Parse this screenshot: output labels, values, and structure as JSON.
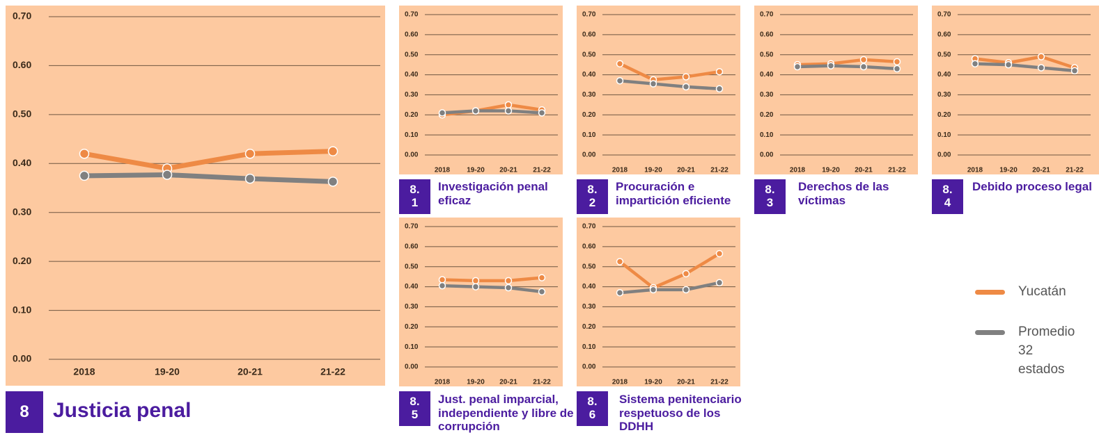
{
  "chart_data": [
    {
      "type": "line",
      "title": "Justicia penal",
      "badge": [
        "8"
      ],
      "categories": [
        "2018",
        "19-20",
        "20-21",
        "21-22"
      ],
      "series": [
        {
          "name": "Yucatán",
          "color": "#ee8a45",
          "values": [
            0.42,
            0.39,
            0.42,
            0.425
          ]
        },
        {
          "name": "Promedio 32 estados",
          "color": "#808080",
          "values": [
            0.375,
            0.377,
            0.369,
            0.363
          ]
        }
      ],
      "ylim": [
        0,
        0.7
      ],
      "yticks": [
        {
          "value": 0,
          "label": "0.00"
        },
        {
          "value": 0.1,
          "label": "0.10"
        },
        {
          "value": 0.2,
          "label": "0.20"
        },
        {
          "value": 0.3,
          "label": "0.30"
        },
        {
          "value": 0.4,
          "label": "0.40"
        },
        {
          "value": 0.5,
          "label": "0.50"
        },
        {
          "value": 0.6,
          "label": "0.60"
        },
        {
          "value": 0.7,
          "label": "0.70"
        }
      ],
      "grid": true
    },
    {
      "type": "line",
      "title": "Investigación penal eficaz",
      "badge": [
        "8.",
        "1"
      ],
      "categories": [
        "2018",
        "19-20",
        "20-21",
        "21-22"
      ],
      "series": [
        {
          "name": "Yucatán",
          "color": "#ee8a45",
          "values": [
            0.2,
            0.22,
            0.25,
            0.225
          ]
        },
        {
          "name": "Promedio 32 estados",
          "color": "#808080",
          "values": [
            0.21,
            0.22,
            0.22,
            0.21
          ]
        }
      ],
      "ylim": [
        0,
        0.7
      ],
      "yticks": [
        {
          "value": 0,
          "label": "0.00"
        },
        {
          "value": 0.1,
          "label": "0.10"
        },
        {
          "value": 0.2,
          "label": "0.20"
        },
        {
          "value": 0.3,
          "label": "0.30"
        },
        {
          "value": 0.4,
          "label": "0.40"
        },
        {
          "value": 0.5,
          "label": "0.50"
        },
        {
          "value": 0.6,
          "label": "0.60"
        },
        {
          "value": 0.7,
          "label": "0.70"
        }
      ],
      "grid": true
    },
    {
      "type": "line",
      "title": "Procuración e impartición eficiente",
      "badge": [
        "8.",
        "2"
      ],
      "categories": [
        "2018",
        "19-20",
        "20-21",
        "21-22"
      ],
      "series": [
        {
          "name": "Yucatán",
          "color": "#ee8a45",
          "values": [
            0.455,
            0.375,
            0.39,
            0.415
          ]
        },
        {
          "name": "Promedio 32 estados",
          "color": "#808080",
          "values": [
            0.37,
            0.355,
            0.34,
            0.33
          ]
        }
      ],
      "ylim": [
        0,
        0.7
      ],
      "yticks": [
        {
          "value": 0,
          "label": "0.00"
        },
        {
          "value": 0.1,
          "label": "0.10"
        },
        {
          "value": 0.2,
          "label": "0.20"
        },
        {
          "value": 0.3,
          "label": "0.30"
        },
        {
          "value": 0.4,
          "label": "0.40"
        },
        {
          "value": 0.5,
          "label": "0.50"
        },
        {
          "value": 0.6,
          "label": "0.60"
        },
        {
          "value": 0.7,
          "label": "0.70"
        }
      ],
      "grid": true
    },
    {
      "type": "line",
      "title": "Derechos de las víctimas",
      "badge": [
        "8.",
        "3"
      ],
      "categories": [
        "2018",
        "19-20",
        "20-21",
        "21-22"
      ],
      "series": [
        {
          "name": "Yucatán",
          "color": "#ee8a45",
          "values": [
            0.45,
            0.455,
            0.475,
            0.465
          ]
        },
        {
          "name": "Promedio 32 estados",
          "color": "#808080",
          "values": [
            0.44,
            0.445,
            0.44,
            0.43
          ]
        }
      ],
      "ylim": [
        0,
        0.7
      ],
      "yticks": [
        {
          "value": 0,
          "label": "0.00"
        },
        {
          "value": 0.1,
          "label": "0.10"
        },
        {
          "value": 0.2,
          "label": "0.20"
        },
        {
          "value": 0.3,
          "label": "0.30"
        },
        {
          "value": 0.4,
          "label": "0.40"
        },
        {
          "value": 0.5,
          "label": "0.50"
        },
        {
          "value": 0.6,
          "label": "0.60"
        },
        {
          "value": 0.7,
          "label": "0.70"
        }
      ],
      "grid": true
    },
    {
      "type": "line",
      "title": "Debido proceso legal",
      "badge": [
        "8.",
        "4"
      ],
      "categories": [
        "2018",
        "19-20",
        "20-21",
        "21-22"
      ],
      "series": [
        {
          "name": "Yucatán",
          "color": "#ee8a45",
          "values": [
            0.48,
            0.46,
            0.49,
            0.435
          ]
        },
        {
          "name": "Promedio 32 estados",
          "color": "#808080",
          "values": [
            0.455,
            0.45,
            0.435,
            0.42
          ]
        }
      ],
      "ylim": [
        0,
        0.7
      ],
      "yticks": [
        {
          "value": 0,
          "label": "0.00"
        },
        {
          "value": 0.1,
          "label": "0.10"
        },
        {
          "value": 0.2,
          "label": "0.20"
        },
        {
          "value": 0.3,
          "label": "0.30"
        },
        {
          "value": 0.4,
          "label": "0.40"
        },
        {
          "value": 0.5,
          "label": "0.50"
        },
        {
          "value": 0.6,
          "label": "0.60"
        },
        {
          "value": 0.7,
          "label": "0.70"
        }
      ],
      "grid": true
    },
    {
      "type": "line",
      "title": "Just. penal imparcial, independiente y libre de corrupción",
      "badge": [
        "8.",
        "5"
      ],
      "categories": [
        "2018",
        "19-20",
        "20-21",
        "21-22"
      ],
      "series": [
        {
          "name": "Yucatán",
          "color": "#ee8a45",
          "values": [
            0.435,
            0.43,
            0.43,
            0.445
          ]
        },
        {
          "name": "Promedio 32 estados",
          "color": "#808080",
          "values": [
            0.405,
            0.4,
            0.395,
            0.375
          ]
        }
      ],
      "ylim": [
        0,
        0.7
      ],
      "yticks": [
        {
          "value": 0,
          "label": "0.00"
        },
        {
          "value": 0.1,
          "label": "0.10"
        },
        {
          "value": 0.2,
          "label": "0.20"
        },
        {
          "value": 0.3,
          "label": "0.30"
        },
        {
          "value": 0.4,
          "label": "0.40"
        },
        {
          "value": 0.5,
          "label": "0.50"
        },
        {
          "value": 0.6,
          "label": "0.60"
        },
        {
          "value": 0.7,
          "label": "0.70"
        }
      ],
      "grid": true
    },
    {
      "type": "line",
      "title": "Sistema penitenciario respetuoso de los DDHH",
      "badge": [
        "8.",
        "6"
      ],
      "categories": [
        "2018",
        "19-20",
        "20-21",
        "21-22"
      ],
      "series": [
        {
          "name": "Yucatán",
          "color": "#ee8a45",
          "values": [
            0.525,
            0.395,
            0.465,
            0.565
          ]
        },
        {
          "name": "Promedio 32 estados",
          "color": "#808080",
          "values": [
            0.37,
            0.385,
            0.385,
            0.42
          ]
        }
      ],
      "ylim": [
        0,
        0.7
      ],
      "yticks": [
        {
          "value": 0,
          "label": "0.00"
        },
        {
          "value": 0.1,
          "label": "0.10"
        },
        {
          "value": 0.2,
          "label": "0.20"
        },
        {
          "value": 0.3,
          "label": "0.30"
        },
        {
          "value": 0.4,
          "label": "0.40"
        },
        {
          "value": 0.5,
          "label": "0.50"
        },
        {
          "value": 0.6,
          "label": "0.60"
        },
        {
          "value": 0.7,
          "label": "0.70"
        }
      ],
      "grid": true
    }
  ]
}
